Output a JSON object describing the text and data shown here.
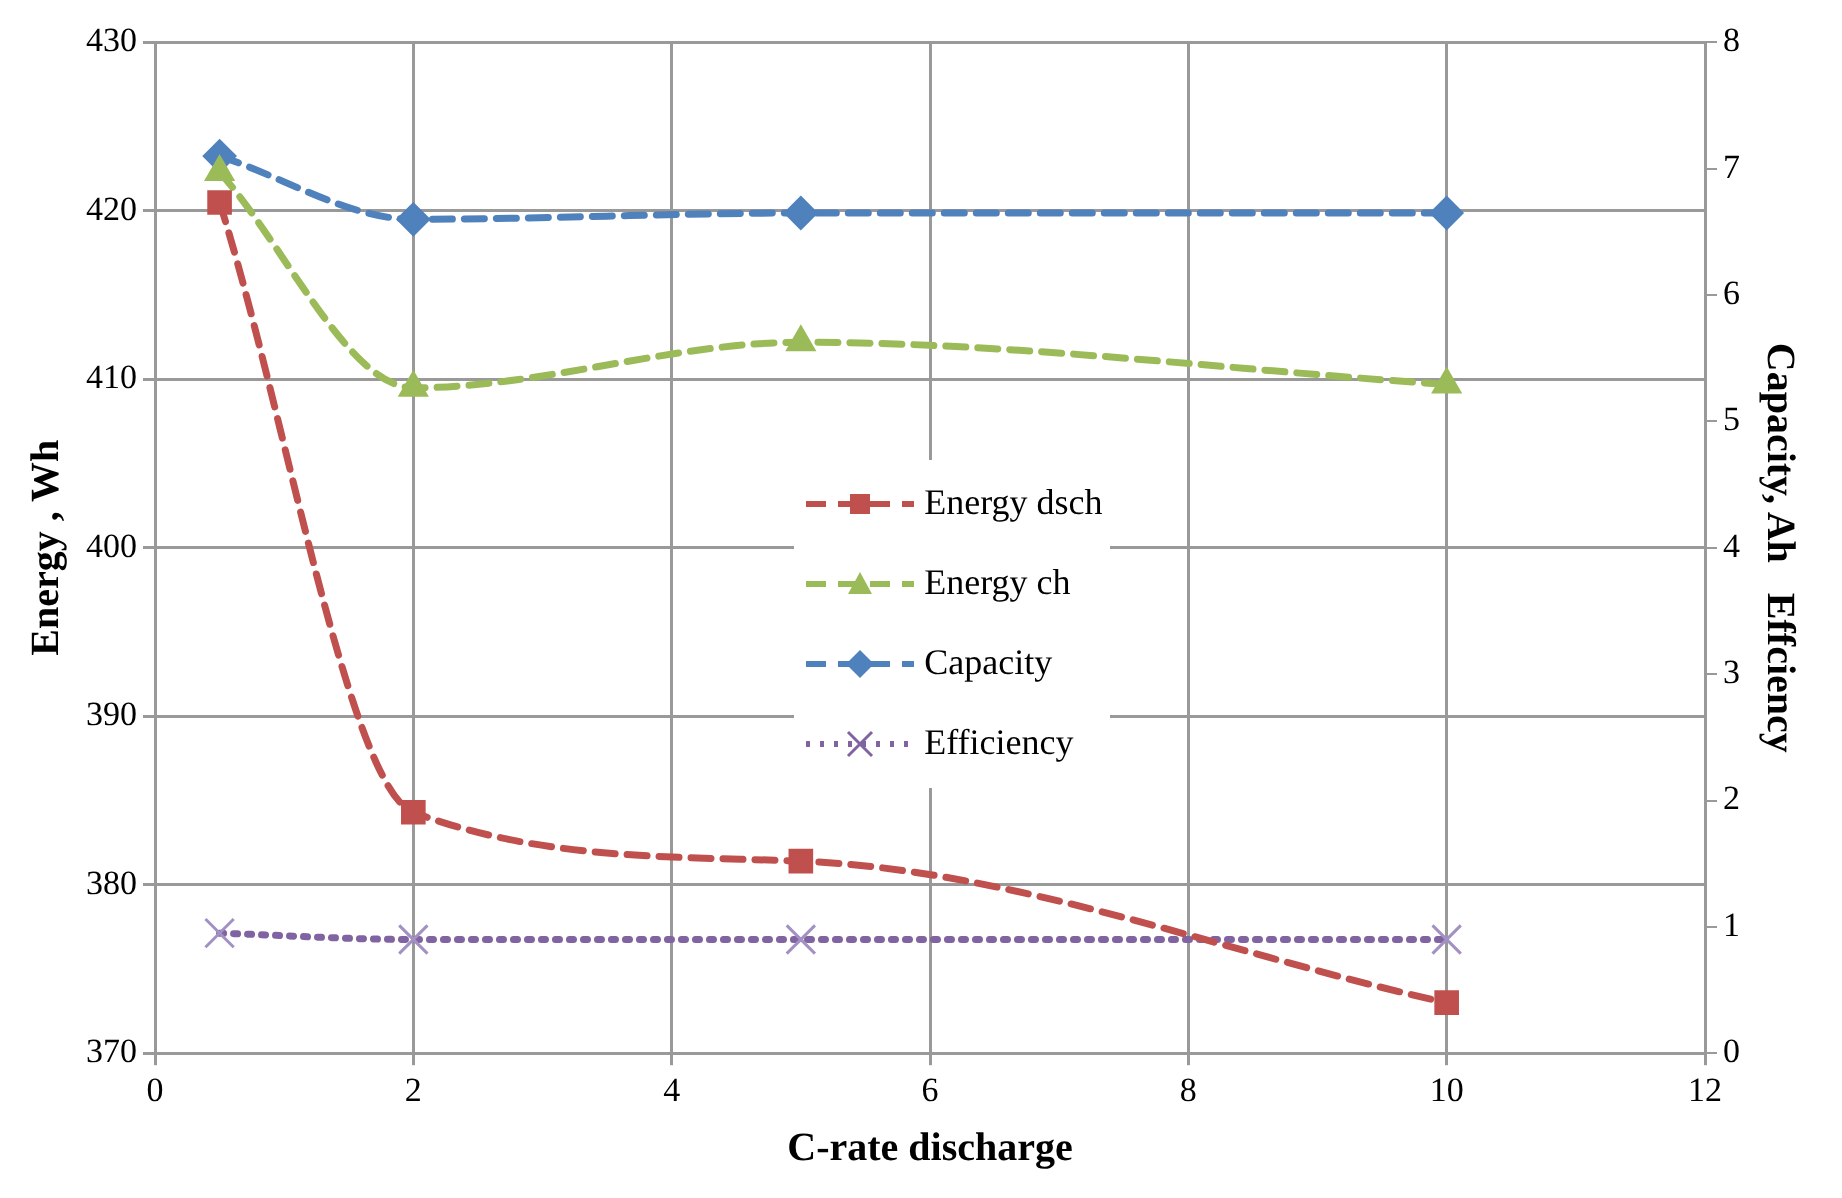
{
  "chart_data": {
    "type": "line",
    "xlabel": "C-rate discharge",
    "ylabel": "Energy , Wh",
    "y2label": "Capacity, Ah   Effciency",
    "x": [
      0.5,
      2,
      5,
      10
    ],
    "series": [
      {
        "name": "Energy dsch",
        "color": "#c0504d",
        "values": [
          420.5,
          384.3,
          381.4,
          373
        ],
        "marker": "square",
        "line_style": "dashed"
      },
      {
        "name": "Energy ch",
        "color": "#9bbb59",
        "values": [
          422.3,
          409.5,
          412.2,
          409.7
        ],
        "marker": "triangle",
        "line_style": "dashed"
      },
      {
        "name": "Capacity",
        "color": "#4f81bd",
        "values": [
          7.1,
          6.6,
          6.65,
          6.65
        ],
        "marker": "diamond",
        "line_style": "dashed",
        "axis": "y2"
      },
      {
        "name": "Efficiency",
        "color": "#8064a2",
        "values": [
          0.95,
          0.9,
          0.9,
          0.9
        ],
        "marker": "cross",
        "line_style": "dotted",
        "axis": "y2"
      }
    ],
    "xlim": [
      0,
      12
    ],
    "xticks": [
      0,
      2,
      4,
      6,
      8,
      10,
      12
    ],
    "ylim": [
      370,
      430
    ],
    "yticks": [
      370,
      380,
      390,
      400,
      410,
      420,
      430
    ],
    "y2lim": [
      0,
      8
    ],
    "y2ticks": [
      0,
      1,
      2,
      3,
      4,
      5,
      6,
      7,
      8
    ],
    "grid": true,
    "legend": "center"
  }
}
